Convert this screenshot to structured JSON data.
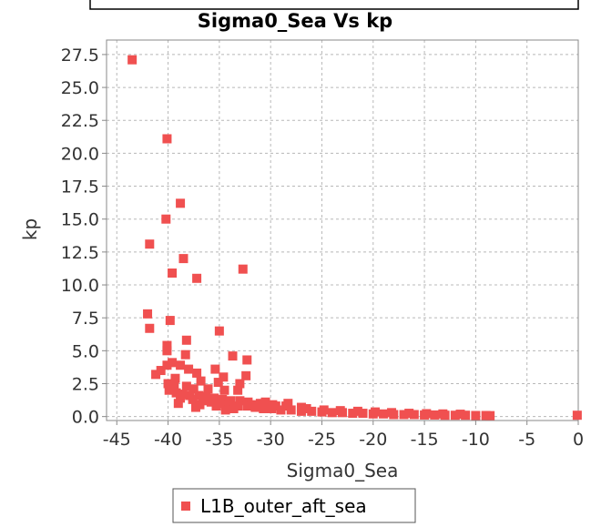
{
  "chart_data": {
    "type": "scatter",
    "title": "Sigma0_Sea Vs kp",
    "xlabel": "Sigma0_Sea",
    "ylabel": "kp",
    "xlim": [
      -46,
      0
    ],
    "ylim": [
      -0.3,
      28.6
    ],
    "x_ticks": [
      -45,
      -40,
      -35,
      -30,
      -25,
      -20,
      -15,
      -10,
      -5,
      0
    ],
    "x_tick_labels": [
      "-45",
      "-40",
      "-35",
      "-30",
      "-25",
      "-20",
      "-15",
      "-10",
      "-5",
      "0"
    ],
    "y_ticks": [
      0,
      2.5,
      5,
      7.5,
      10,
      12.5,
      15,
      17.5,
      20,
      22.5,
      25,
      27.5
    ],
    "y_tick_labels": [
      "0.0",
      "2.5",
      "5.0",
      "7.5",
      "10.0",
      "12.5",
      "15.0",
      "17.5",
      "20.0",
      "22.5",
      "25.0",
      "27.5"
    ],
    "grid": true,
    "legend_position": "bottom-center",
    "series": [
      {
        "name": "L1B_outer_aft_sea",
        "color": "#f05050",
        "points": [
          [
            -43.5,
            27.1
          ],
          [
            -40.1,
            21.1
          ],
          [
            -38.8,
            16.2
          ],
          [
            -40.2,
            15.0
          ],
          [
            -41.8,
            13.1
          ],
          [
            -38.5,
            12.0
          ],
          [
            -32.7,
            11.2
          ],
          [
            -39.6,
            10.9
          ],
          [
            -37.2,
            10.5
          ],
          [
            -42.0,
            7.8
          ],
          [
            -39.8,
            7.3
          ],
          [
            -41.8,
            6.7
          ],
          [
            -35.0,
            6.5
          ],
          [
            -38.2,
            5.8
          ],
          [
            -40.1,
            5.4
          ],
          [
            -40.1,
            5.0
          ],
          [
            -38.3,
            4.7
          ],
          [
            -33.7,
            4.6
          ],
          [
            -32.3,
            4.3
          ],
          [
            -39.6,
            4.1
          ],
          [
            -40.1,
            3.9
          ],
          [
            -38.8,
            3.9
          ],
          [
            -40.7,
            3.5
          ],
          [
            -38.0,
            3.6
          ],
          [
            -35.4,
            3.6
          ],
          [
            -41.2,
            3.2
          ],
          [
            -37.2,
            3.3
          ],
          [
            -34.6,
            3.0
          ],
          [
            -32.4,
            3.1
          ],
          [
            -39.3,
            2.9
          ],
          [
            -36.8,
            2.7
          ],
          [
            -35.1,
            2.6
          ],
          [
            -33.0,
            2.5
          ],
          [
            -40.0,
            2.5
          ],
          [
            -39.4,
            2.3
          ],
          [
            -38.2,
            2.3
          ],
          [
            -37.5,
            2.1
          ],
          [
            -36.1,
            2.1
          ],
          [
            -34.5,
            2.0
          ],
          [
            -33.2,
            2.0
          ],
          [
            -39.9,
            2.0
          ],
          [
            -39.2,
            1.8
          ],
          [
            -38.6,
            1.7
          ],
          [
            -37.9,
            1.6
          ],
          [
            -37.0,
            1.6
          ],
          [
            -36.3,
            1.5
          ],
          [
            -35.5,
            1.4
          ],
          [
            -34.7,
            1.3
          ],
          [
            -33.9,
            1.2
          ],
          [
            -33.0,
            1.2
          ],
          [
            -32.2,
            1.1
          ],
          [
            -31.0,
            1.0
          ],
          [
            -29.8,
            0.9
          ],
          [
            -28.5,
            0.8
          ],
          [
            -27.0,
            0.7
          ],
          [
            -38.8,
            1.4
          ],
          [
            -37.6,
            1.3
          ],
          [
            -36.6,
            1.2
          ],
          [
            -35.8,
            1.1
          ],
          [
            -34.9,
            1.0
          ],
          [
            -34.1,
            0.9
          ],
          [
            -33.2,
            0.8
          ],
          [
            -32.3,
            0.8
          ],
          [
            -31.5,
            0.7
          ],
          [
            -30.7,
            0.6
          ],
          [
            -29.9,
            0.6
          ],
          [
            -29.0,
            0.5
          ],
          [
            -28.0,
            0.5
          ],
          [
            -27.0,
            0.4
          ],
          [
            -26.0,
            0.4
          ],
          [
            -25.0,
            0.35
          ],
          [
            -24.0,
            0.3
          ],
          [
            -23.0,
            0.3
          ],
          [
            -22.0,
            0.25
          ],
          [
            -21.0,
            0.25
          ],
          [
            -20.0,
            0.2
          ],
          [
            -19.0,
            0.2
          ],
          [
            -18.0,
            0.15
          ],
          [
            -17.0,
            0.15
          ],
          [
            -16.0,
            0.15
          ],
          [
            -15.0,
            0.12
          ],
          [
            -14.0,
            0.12
          ],
          [
            -13.0,
            0.1
          ],
          [
            -12.0,
            0.1
          ],
          [
            -11.0,
            0.1
          ],
          [
            -10.0,
            0.08
          ],
          [
            -9.0,
            0.08
          ],
          [
            -8.6,
            0.07
          ],
          [
            -28.3,
            1.0
          ],
          [
            -26.5,
            0.6
          ],
          [
            -24.8,
            0.5
          ],
          [
            -23.2,
            0.45
          ],
          [
            -21.5,
            0.4
          ],
          [
            -19.8,
            0.35
          ],
          [
            -18.2,
            0.3
          ],
          [
            -16.5,
            0.25
          ],
          [
            -14.8,
            0.22
          ],
          [
            -13.2,
            0.2
          ],
          [
            -11.5,
            0.18
          ],
          [
            -30.5,
            1.1
          ],
          [
            -29.5,
            0.8
          ],
          [
            -31.8,
            0.9
          ],
          [
            -36.9,
            0.9
          ],
          [
            -35.3,
            0.8
          ],
          [
            -33.6,
            0.6
          ],
          [
            -39.0,
            1.0
          ],
          [
            -37.3,
            0.7
          ],
          [
            -34.4,
            0.5
          ],
          [
            -0.1,
            0.1
          ]
        ]
      }
    ]
  }
}
